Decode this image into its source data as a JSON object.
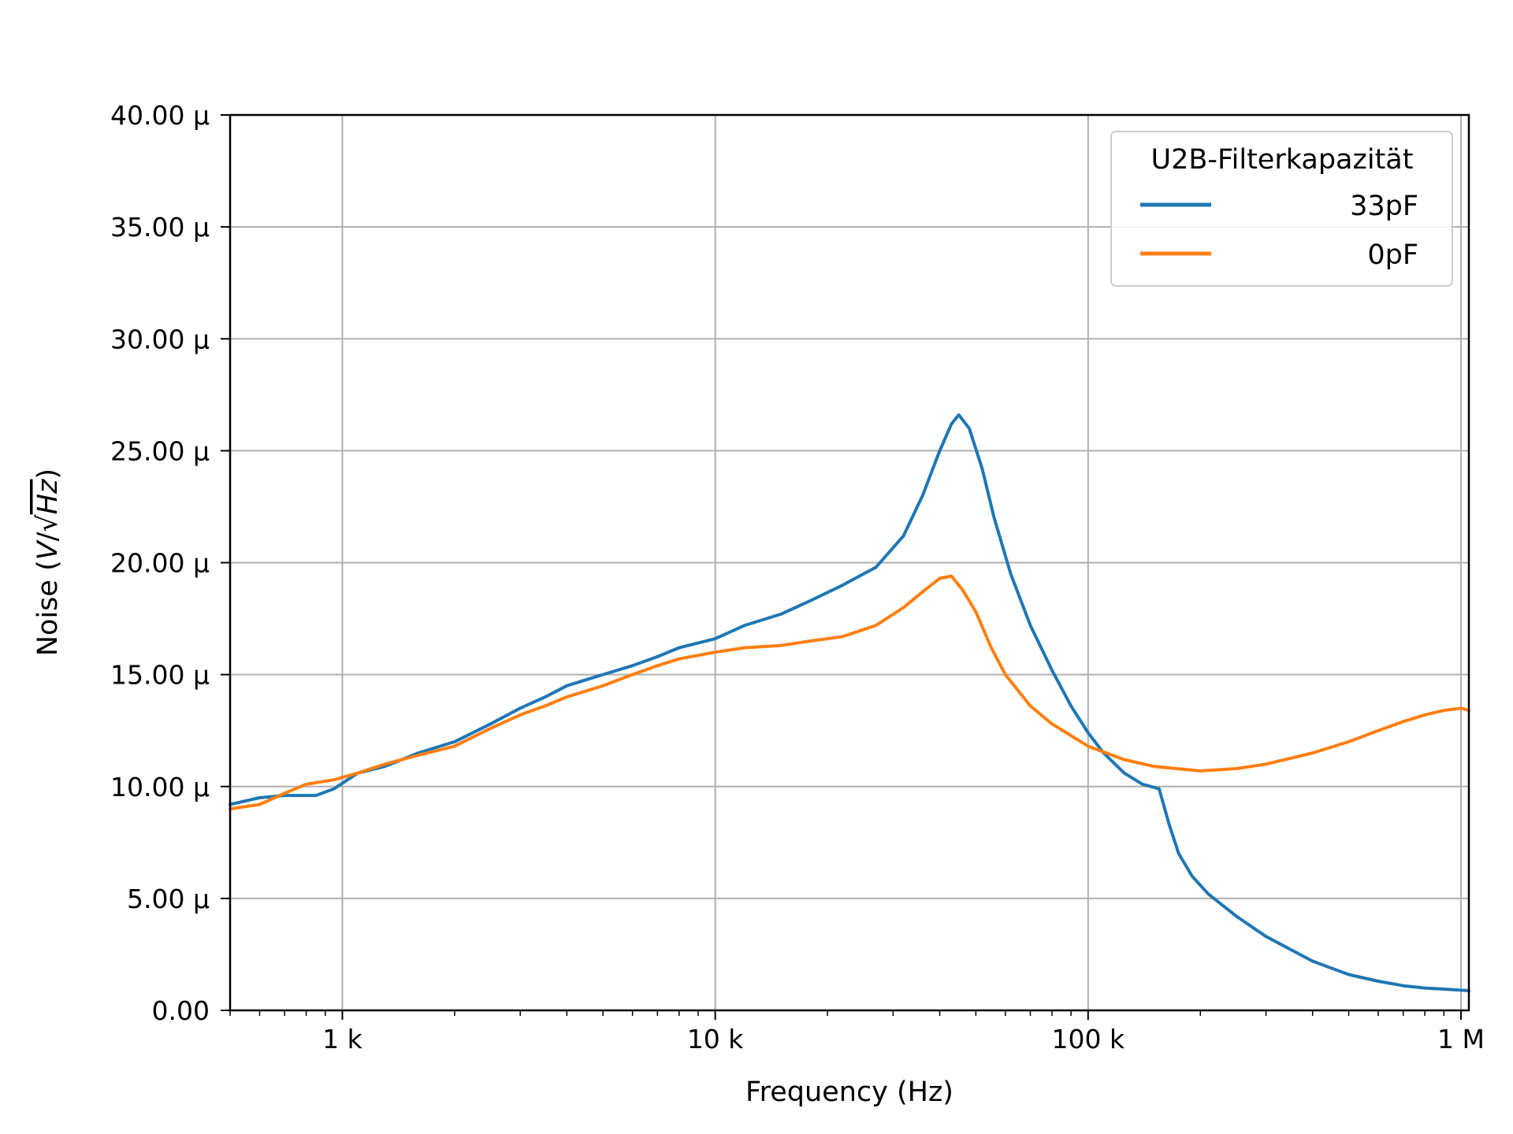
{
  "chart_data": {
    "type": "line",
    "xlabel": "Frequency (Hz)",
    "ylabel_prefix": "Noise (",
    "ylabel_unit_v": "V",
    "ylabel_unit_sep": "/√",
    "ylabel_unit_hz": "Hz",
    "ylabel_suffix": ")",
    "xscale": "log",
    "xlim": [
      500,
      1050000
    ],
    "ylim": [
      0,
      4e-05
    ],
    "grid": true,
    "x_ticks": [
      {
        "value": 1000,
        "label": "1 k"
      },
      {
        "value": 10000,
        "label": "10 k"
      },
      {
        "value": 100000,
        "label": "100 k"
      },
      {
        "value": 1000000,
        "label": "1 M"
      }
    ],
    "y_ticks": [
      {
        "value": 0,
        "label": "0.00"
      },
      {
        "value": 5e-06,
        "label": "5.00 µ"
      },
      {
        "value": 1e-05,
        "label": "10.00 µ"
      },
      {
        "value": 1.5e-05,
        "label": "15.00 µ"
      },
      {
        "value": 2e-05,
        "label": "20.00 µ"
      },
      {
        "value": 2.5e-05,
        "label": "25.00 µ"
      },
      {
        "value": 3e-05,
        "label": "30.00 µ"
      },
      {
        "value": 3.5e-05,
        "label": "35.00 µ"
      },
      {
        "value": 4e-05,
        "label": "40.00 µ"
      }
    ],
    "legend": {
      "title": "U2B-Filterkapazität",
      "position": "upper right"
    },
    "series": [
      {
        "name": "33pF",
        "color": "#1f77b4",
        "x": [
          500,
          600,
          700,
          850,
          950,
          1100,
          1300,
          1600,
          2000,
          2500,
          3000,
          3500,
          4000,
          5000,
          6000,
          7000,
          8000,
          10000,
          12000,
          15000,
          18000,
          22000,
          27000,
          32000,
          36000,
          40000,
          43000,
          45000,
          48000,
          52000,
          56000,
          62000,
          70000,
          80000,
          90000,
          100000,
          110000,
          125000,
          140000,
          155000,
          165000,
          175000,
          190000,
          210000,
          250000,
          300000,
          400000,
          500000,
          600000,
          700000,
          800000,
          900000,
          1000000,
          1050000
        ],
        "y": [
          9.2e-06,
          9.5e-06,
          9.6e-06,
          9.6e-06,
          9.9e-06,
          1.06e-05,
          1.09e-05,
          1.15e-05,
          1.2e-05,
          1.28e-05,
          1.35e-05,
          1.4e-05,
          1.45e-05,
          1.5e-05,
          1.54e-05,
          1.58e-05,
          1.62e-05,
          1.66e-05,
          1.72e-05,
          1.77e-05,
          1.83e-05,
          1.9e-05,
          1.98e-05,
          2.12e-05,
          2.3e-05,
          2.5e-05,
          2.62e-05,
          2.66e-05,
          2.6e-05,
          2.42e-05,
          2.2e-05,
          1.95e-05,
          1.72e-05,
          1.52e-05,
          1.36e-05,
          1.24e-05,
          1.15e-05,
          1.06e-05,
          1.01e-05,
          9.9e-06,
          8.3e-06,
          7e-06,
          6e-06,
          5.2e-06,
          4.2e-06,
          3.3e-06,
          2.2e-06,
          1.6e-06,
          1.3e-06,
          1.1e-06,
          1e-06,
          9.5e-07,
          9e-07,
          8.8e-07
        ]
      },
      {
        "name": "0pF",
        "color": "#ff7f0e",
        "x": [
          500,
          600,
          700,
          800,
          950,
          1100,
          1300,
          1600,
          2000,
          2500,
          3000,
          3500,
          4000,
          5000,
          6000,
          7000,
          8000,
          10000,
          12000,
          15000,
          18000,
          22000,
          27000,
          32000,
          36000,
          40000,
          43000,
          46000,
          50000,
          55000,
          60000,
          70000,
          80000,
          100000,
          125000,
          150000,
          200000,
          250000,
          300000,
          400000,
          500000,
          600000,
          700000,
          800000,
          900000,
          1000000,
          1050000
        ],
        "y": [
          9e-06,
          9.2e-06,
          9.7e-06,
          1.01e-05,
          1.03e-05,
          1.06e-05,
          1.1e-05,
          1.14e-05,
          1.18e-05,
          1.26e-05,
          1.32e-05,
          1.36e-05,
          1.4e-05,
          1.45e-05,
          1.5e-05,
          1.54e-05,
          1.57e-05,
          1.6e-05,
          1.62e-05,
          1.63e-05,
          1.65e-05,
          1.67e-05,
          1.72e-05,
          1.8e-05,
          1.87e-05,
          1.93e-05,
          1.94e-05,
          1.88e-05,
          1.78e-05,
          1.62e-05,
          1.5e-05,
          1.36e-05,
          1.28e-05,
          1.18e-05,
          1.12e-05,
          1.09e-05,
          1.07e-05,
          1.08e-05,
          1.1e-05,
          1.15e-05,
          1.2e-05,
          1.25e-05,
          1.29e-05,
          1.32e-05,
          1.34e-05,
          1.35e-05,
          1.34e-05
        ]
      }
    ]
  }
}
